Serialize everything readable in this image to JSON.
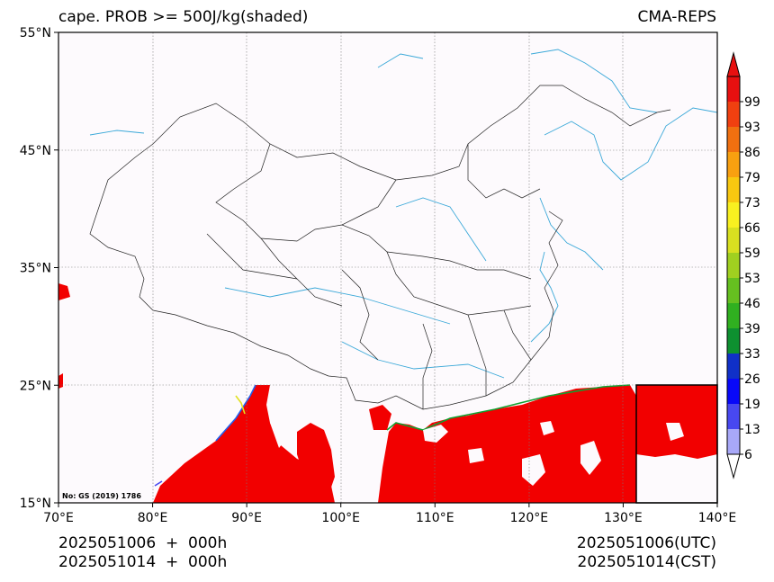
{
  "title": {
    "left": "cape. PROB >= 500J/kg(shaded)",
    "right": "CMA-REPS"
  },
  "axes": {
    "lon_labels": [
      "70°E",
      "80°E",
      "90°E",
      "100°E",
      "110°E",
      "120°E",
      "130°E",
      "140°E"
    ],
    "lat_labels": [
      "15°N",
      "25°N",
      "35°N",
      "45°N",
      "55°N"
    ],
    "lon_range": [
      70,
      140
    ],
    "lat_range": [
      15,
      55
    ],
    "grid": true
  },
  "colorbar": {
    "levels": [
      "6",
      "13",
      "19",
      "26",
      "33",
      "39",
      "46",
      "53",
      "59",
      "66",
      "73",
      "79",
      "86",
      "93",
      "99"
    ],
    "colors": [
      "#a8a8f8",
      "#4848f0",
      "#0808f8",
      "#1030c8",
      "#0e9030",
      "#30b020",
      "#66c020",
      "#a0d020",
      "#d8e020",
      "#f8f020",
      "#f8c810",
      "#f8a010",
      "#f07010",
      "#f04010",
      "#e81010"
    ],
    "extend_low_color": "#ffffff",
    "extend_high_color": "#e81010"
  },
  "time": {
    "left_line1": "2025051006  +  000h",
    "left_line2": "2025051014  +  000h",
    "right_line1": "2025051006(UTC)",
    "right_line2": "2025051014(CST)"
  },
  "map_note": "No: GS (2019) 1786",
  "colors": {
    "ocean_bg": "#fdfafd",
    "shade": "#f20000",
    "rivers": "#3aa8d8",
    "borders": "#222222"
  }
}
